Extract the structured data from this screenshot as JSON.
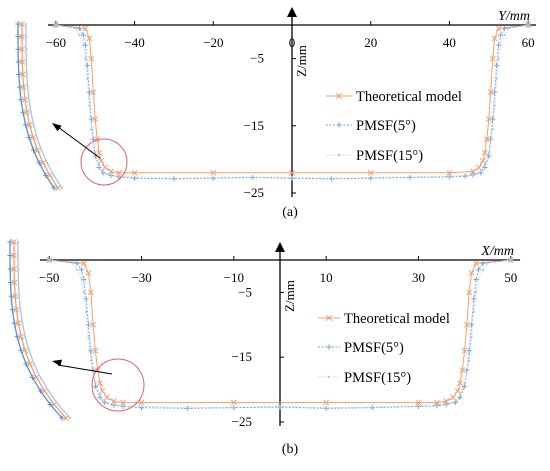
{
  "chart_data": [
    {
      "type": "line",
      "panel_label": "(a)",
      "xlabel": "Y/mm",
      "ylabel": "Z/mm",
      "xlim": [
        -62,
        62
      ],
      "ylim": [
        -25,
        0
      ],
      "x_ticks": [
        -60,
        -40,
        -20,
        0,
        20,
        40,
        60
      ],
      "x_tick_labels": [
        "−60",
        "−40",
        "−20",
        "0",
        "20",
        "40",
        "60"
      ],
      "y_ticks": [
        -5,
        -15,
        -25
      ],
      "y_tick_labels": [
        "−5",
        "−15",
        "−25"
      ],
      "grid": false,
      "legend_position": "center-right",
      "series": [
        {
          "name": "Theoretical model",
          "color": "#f0a070",
          "marker": "x",
          "x": [
            -60,
            -52.5,
            -51.5,
            -51,
            -50.5,
            -50,
            -49.5,
            -49,
            -48.5,
            -47.5,
            -46,
            -44,
            -40,
            -20,
            0,
            20,
            40,
            46,
            47.5,
            48.5,
            49,
            49.5,
            50,
            50.5,
            51,
            51.5,
            52.5,
            60
          ],
          "y": [
            0,
            -0.5,
            -2,
            -5,
            -10,
            -14,
            -17,
            -19,
            -20.2,
            -21.2,
            -21.8,
            -22,
            -22,
            -22,
            -22,
            -22,
            -22,
            -21.8,
            -21.2,
            -20.2,
            -19,
            -17,
            -14,
            -10,
            -5,
            -2,
            -0.5,
            0
          ]
        },
        {
          "name": "PMSF(5°)",
          "color": "#7aa6d8",
          "marker": "+",
          "x": [
            -60,
            -54,
            -53,
            -52.5,
            -52,
            -51.5,
            -51,
            -50.5,
            -50,
            -49,
            -48,
            -46,
            -44,
            -40,
            -30,
            -20,
            -10,
            0,
            10,
            20,
            30,
            40,
            44,
            46,
            48,
            49,
            50,
            50.5,
            51,
            51.5,
            52,
            52.5,
            53,
            54,
            60
          ],
          "y": [
            0,
            -0.5,
            -1.5,
            -3,
            -6,
            -10,
            -14,
            -17,
            -19.5,
            -21.2,
            -22,
            -22.4,
            -22.6,
            -22.8,
            -22.9,
            -22.8,
            -22.7,
            -22.8,
            -22.9,
            -22.8,
            -22.7,
            -22.6,
            -22.5,
            -22.3,
            -22,
            -21.2,
            -19.5,
            -17,
            -14,
            -10,
            -6,
            -3,
            -1.5,
            -0.5,
            0
          ]
        },
        {
          "name": "PMSF(15°)",
          "color": "#a9c5e6",
          "marker": "dot",
          "x": [
            -60,
            -55,
            -54,
            -53,
            -52.5,
            -52,
            -51.5,
            -51,
            -50,
            -49,
            -48,
            -46,
            -44,
            -40,
            -30,
            -20,
            -10,
            0,
            10,
            20,
            30,
            40,
            44,
            46,
            48,
            49,
            50,
            51,
            51.5,
            52,
            52.5,
            53,
            54,
            55,
            60
          ],
          "y": [
            0,
            -0.5,
            -1.5,
            -3,
            -5,
            -8,
            -12,
            -15.5,
            -19,
            -20.8,
            -21.8,
            -22.3,
            -22.5,
            -22.6,
            -22.8,
            -22.7,
            -22.6,
            -22.7,
            -22.8,
            -22.7,
            -22.6,
            -22.5,
            -22.4,
            -22.2,
            -21.8,
            -20.8,
            -19,
            -15.5,
            -12,
            -8,
            -5,
            -3,
            -1.5,
            -0.5,
            0
          ]
        }
      ]
    },
    {
      "type": "line",
      "panel_label": "(b)",
      "xlabel": "X/mm",
      "ylabel": "Z/mm",
      "xlim": [
        -52,
        52
      ],
      "ylim": [
        -25,
        0
      ],
      "x_ticks": [
        -50,
        -30,
        -10,
        10,
        30,
        50
      ],
      "x_tick_labels": [
        "−50",
        "−30",
        "−10",
        "10",
        "30",
        "50"
      ],
      "y_ticks": [
        -5,
        -15,
        -25
      ],
      "y_tick_labels": [
        "−5",
        "−15",
        "−25"
      ],
      "grid": false,
      "legend_position": "center-right",
      "series": [
        {
          "name": "Theoretical model",
          "color": "#f0a070",
          "marker": "x",
          "x": [
            -50,
            -42.5,
            -41.5,
            -41,
            -40.5,
            -40,
            -39.5,
            -39,
            -38.5,
            -37.5,
            -36,
            -34,
            -30,
            -10,
            10,
            30,
            34,
            36,
            37.5,
            38.5,
            39,
            39.5,
            40,
            40.5,
            41,
            41.5,
            42.5,
            50
          ],
          "y": [
            0,
            -0.5,
            -2,
            -5,
            -10,
            -14,
            -17,
            -19,
            -20.2,
            -21.2,
            -21.8,
            -22,
            -22,
            -22,
            -22,
            -22,
            -22,
            -21.8,
            -21.2,
            -20.2,
            -19,
            -17,
            -14,
            -10,
            -5,
            -2,
            -0.5,
            0
          ]
        },
        {
          "name": "PMSF(5°)",
          "color": "#7aa6d8",
          "marker": "+",
          "x": [
            -50,
            -44,
            -43,
            -42.5,
            -42,
            -41.5,
            -41,
            -40.5,
            -40,
            -39,
            -38,
            -36,
            -34,
            -30,
            -20,
            -10,
            0,
            10,
            20,
            30,
            34,
            36,
            38,
            39,
            40,
            40.5,
            41,
            41.5,
            42,
            42.5,
            43,
            44,
            50
          ],
          "y": [
            0,
            -0.5,
            -1.5,
            -3,
            -6,
            -10,
            -14,
            -17,
            -19.5,
            -21.2,
            -22,
            -22.4,
            -22.6,
            -22.8,
            -22.9,
            -22.8,
            -22.7,
            -22.9,
            -22.8,
            -22.6,
            -22.5,
            -22.3,
            -22,
            -21.2,
            -19.5,
            -17,
            -14,
            -10,
            -6,
            -3,
            -1.5,
            -0.5,
            0
          ]
        },
        {
          "name": "PMSF(15°)",
          "color": "#a9c5e6",
          "marker": "dot",
          "x": [
            -50,
            -45,
            -44,
            -43,
            -42.5,
            -42,
            -41.5,
            -41,
            -40,
            -39,
            -38,
            -36,
            -34,
            -30,
            -20,
            -10,
            0,
            10,
            20,
            30,
            34,
            36,
            38,
            39,
            40,
            41,
            41.5,
            42,
            42.5,
            43,
            44,
            45,
            50
          ],
          "y": [
            0,
            -0.5,
            -1.5,
            -3,
            -5,
            -8,
            -12,
            -15.5,
            -19,
            -20.8,
            -21.8,
            -22.3,
            -22.5,
            -22.6,
            -22.8,
            -22.7,
            -22.6,
            -22.8,
            -22.7,
            -22.5,
            -22.4,
            -22.2,
            -21.8,
            -20.8,
            -19,
            -15.5,
            -12,
            -8,
            -5,
            -3,
            -1.5,
            -0.5,
            0
          ]
        }
      ]
    }
  ]
}
